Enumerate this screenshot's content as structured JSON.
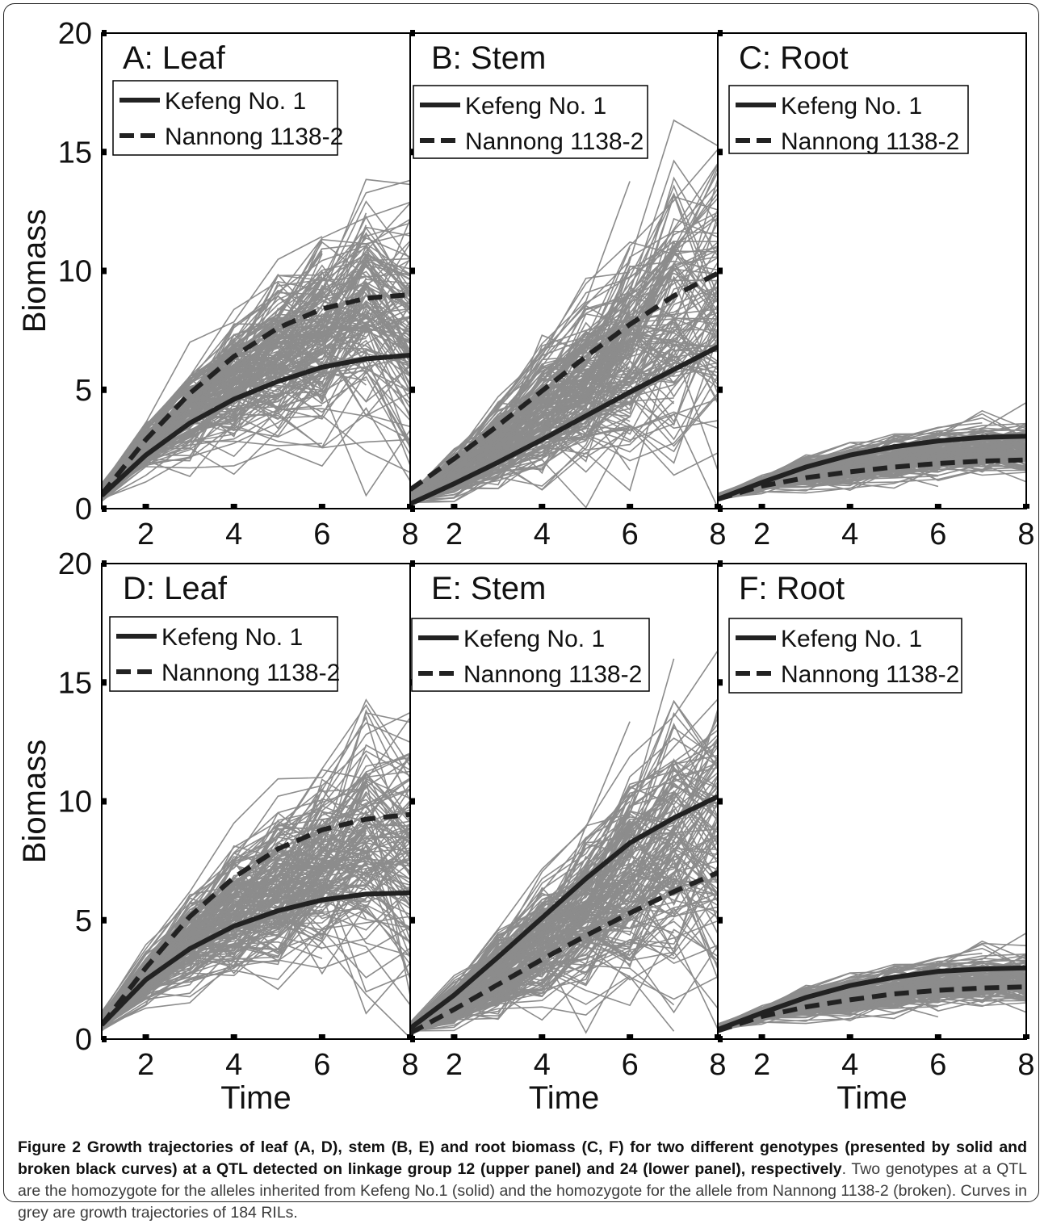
{
  "colors": {
    "grey_curves": "#8c8c8c",
    "genotype_curves": "#222222",
    "axis": "#000000"
  },
  "chart_data": [
    {
      "type": "line",
      "title": "A: Leaf",
      "ylabel": "Biomass",
      "xlabel": "",
      "xlim": [
        1,
        8
      ],
      "ylim": [
        0,
        20
      ],
      "xticks": [
        2,
        4,
        6,
        8
      ],
      "yticks": [
        0,
        5,
        10,
        15,
        20
      ],
      "legend": "top-left",
      "grid": false,
      "series": [
        {
          "name": "Kefeng No. 1",
          "style": "solid",
          "x": [
            1,
            2,
            3,
            4,
            5,
            6,
            7,
            8
          ],
          "y": [
            0.55,
            2.25,
            3.6,
            4.6,
            5.35,
            5.95,
            6.3,
            6.45
          ]
        },
        {
          "name": "Nannong 1138-2",
          "style": "dashed",
          "x": [
            1,
            2,
            3,
            4,
            5,
            6,
            7,
            8
          ],
          "y": [
            0.6,
            2.9,
            4.85,
            6.4,
            7.6,
            8.4,
            8.85,
            9.0
          ]
        }
      ],
      "grey_series_count": 184
    },
    {
      "type": "line",
      "title": "B: Stem",
      "ylabel": "",
      "xlabel": "",
      "xlim": [
        1,
        8
      ],
      "ylim": [
        0,
        20
      ],
      "xticks": [
        2,
        4,
        6,
        8
      ],
      "yticks": [
        0,
        5,
        10,
        15,
        20
      ],
      "legend": "top-left",
      "grid": false,
      "series": [
        {
          "name": "Kefeng No. 1",
          "style": "solid",
          "x": [
            1,
            2,
            3,
            4,
            5,
            6,
            7,
            8
          ],
          "y": [
            0.2,
            1.05,
            1.95,
            2.9,
            3.9,
            4.9,
            5.85,
            6.8
          ]
        },
        {
          "name": "Nannong 1138-2",
          "style": "dashed",
          "x": [
            1,
            2,
            3,
            4,
            5,
            6,
            7,
            8
          ],
          "y": [
            0.8,
            2.1,
            3.5,
            4.95,
            6.4,
            7.75,
            8.95,
            9.9
          ]
        }
      ],
      "grey_series_count": 184
    },
    {
      "type": "line",
      "title": "C: Root",
      "ylabel": "",
      "xlabel": "",
      "xlim": [
        1,
        8
      ],
      "ylim": [
        0,
        20
      ],
      "xticks": [
        2,
        4,
        6,
        8
      ],
      "yticks": [
        0,
        5,
        10,
        15,
        20
      ],
      "legend": "top-left",
      "grid": false,
      "series": [
        {
          "name": "Kefeng No. 1",
          "style": "solid",
          "x": [
            1,
            2,
            3,
            4,
            5,
            6,
            7,
            8
          ],
          "y": [
            0.4,
            1.1,
            1.75,
            2.25,
            2.6,
            2.85,
            3.0,
            3.05
          ]
        },
        {
          "name": "Nannong 1138-2",
          "style": "dashed",
          "x": [
            1,
            2,
            3,
            4,
            5,
            6,
            7,
            8
          ],
          "y": [
            0.4,
            0.95,
            1.3,
            1.55,
            1.75,
            1.9,
            2.0,
            2.05
          ]
        }
      ],
      "grey_series_count": 184
    },
    {
      "type": "line",
      "title": "D: Leaf",
      "ylabel": "Biomass",
      "xlabel": "Time",
      "xlim": [
        1,
        8
      ],
      "ylim": [
        0,
        20
      ],
      "xticks": [
        2,
        4,
        6,
        8
      ],
      "yticks": [
        0,
        5,
        10,
        15,
        20
      ],
      "legend": "top-left",
      "grid": false,
      "series": [
        {
          "name": "Kefeng No. 1",
          "style": "solid",
          "x": [
            1,
            2,
            3,
            4,
            5,
            6,
            7,
            8
          ],
          "y": [
            0.6,
            2.5,
            3.8,
            4.75,
            5.4,
            5.85,
            6.1,
            6.15
          ]
        },
        {
          "name": "Nannong 1138-2",
          "style": "dashed",
          "x": [
            1,
            2,
            3,
            4,
            5,
            6,
            7,
            8
          ],
          "y": [
            0.6,
            3.0,
            5.15,
            6.8,
            8.0,
            8.8,
            9.25,
            9.45
          ]
        }
      ],
      "grey_series_count": 184
    },
    {
      "type": "line",
      "title": "E: Stem",
      "ylabel": "",
      "xlabel": "Time",
      "xlim": [
        1,
        8
      ],
      "ylim": [
        0,
        20
      ],
      "xticks": [
        2,
        4,
        6,
        8
      ],
      "yticks": [
        0,
        5,
        10,
        15,
        20
      ],
      "legend": "top-left",
      "grid": false,
      "series": [
        {
          "name": "Kefeng No. 1",
          "style": "solid",
          "x": [
            1,
            2,
            3,
            4,
            5,
            6,
            7,
            8
          ],
          "y": [
            0.45,
            1.85,
            3.45,
            5.1,
            6.75,
            8.25,
            9.3,
            10.2
          ]
        },
        {
          "name": "Nannong 1138-2",
          "style": "dashed",
          "x": [
            1,
            2,
            3,
            4,
            5,
            6,
            7,
            8
          ],
          "y": [
            0.25,
            1.25,
            2.3,
            3.35,
            4.35,
            5.3,
            6.2,
            7.0
          ]
        }
      ],
      "grey_series_count": 184
    },
    {
      "type": "line",
      "title": "F: Root",
      "ylabel": "",
      "xlabel": "Time",
      "xlim": [
        1,
        8
      ],
      "ylim": [
        0,
        20
      ],
      "xticks": [
        2,
        4,
        6,
        8
      ],
      "yticks": [
        0,
        5,
        10,
        15,
        20
      ],
      "legend": "top-left",
      "grid": false,
      "series": [
        {
          "name": "Kefeng No. 1",
          "style": "solid",
          "x": [
            1,
            2,
            3,
            4,
            5,
            6,
            7,
            8
          ],
          "y": [
            0.4,
            1.1,
            1.75,
            2.25,
            2.6,
            2.85,
            2.95,
            3.0
          ]
        },
        {
          "name": "Nannong 1138-2",
          "style": "dashed",
          "x": [
            1,
            2,
            3,
            4,
            5,
            6,
            7,
            8
          ],
          "y": [
            0.35,
            0.95,
            1.35,
            1.65,
            1.9,
            2.05,
            2.15,
            2.2
          ]
        }
      ],
      "grey_series_count": 184
    }
  ],
  "caption": {
    "bold": "Figure 2 Growth trajectories of leaf (A, D), stem (B, E) and root biomass (C, F) for two different genotypes (presented by solid and broken black curves) at a QTL detected on linkage group 12 (upper panel) and 24 (lower panel), respectively",
    "normal": ". Two genotypes at a QTL are the homozygote for the alleles inherited from Kefeng No.1 (solid) and the homozygote for the allele from Nannong 1138-2 (broken). Curves in grey are growth trajectories of 184 RILs."
  }
}
